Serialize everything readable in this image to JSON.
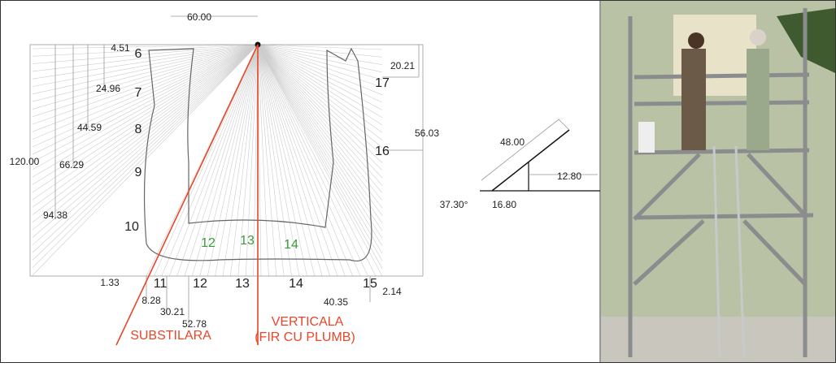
{
  "dimensions": {
    "top_width": "60.00",
    "left_height": "120.00",
    "left": [
      "4.51",
      "24.96",
      "44.59",
      "66.29",
      "94.38"
    ],
    "bottom": [
      "1.33",
      "8.28",
      "30.21",
      "52.78",
      "40.35",
      "2.14"
    ],
    "right": [
      "20.21",
      "56.03"
    ]
  },
  "hour_labels": [
    "6",
    "7",
    "8",
    "9",
    "10",
    "11",
    "12",
    "13",
    "14",
    "15",
    "16",
    "17"
  ],
  "inner_labels": [
    "12",
    "13",
    "14"
  ],
  "line_labels": {
    "substyle": "SUBSTILARA",
    "vertical": "VERTICALA",
    "vertical_note": "(FIR CU PLUMB)"
  },
  "gnomon": {
    "length": "48.00",
    "height": "12.80",
    "angle": "37.30°",
    "base": "16.80"
  }
}
